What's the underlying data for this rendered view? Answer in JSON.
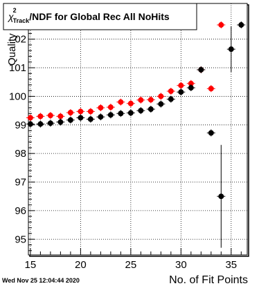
{
  "chart_data": {
    "type": "scatter",
    "title": "/NDF for Global Rec All NoHits",
    "title_symbol": "χ",
    "title_sup": "2",
    "title_sub": "Track",
    "xlabel": "No. of Fit Points",
    "ylabel": "Quality",
    "timestamp": "Wed Nov 25 12:04:44 2020",
    "xlim": [
      14.8,
      36.6
    ],
    "ylim": [
      94.45,
      103.25
    ],
    "x_ticks": [
      15,
      20,
      25,
      30,
      35
    ],
    "y_ticks": [
      95,
      96,
      97,
      98,
      99,
      100,
      101
    ],
    "y_tick_labels": [
      "95",
      "96",
      "97",
      "98",
      "99",
      "100",
      "101"
    ],
    "y_top_tick_value": 102,
    "y_top_tick_label": "02",
    "grid": true,
    "series": [
      {
        "color": "#ff0000",
        "points": [
          {
            "x": 15,
            "y": 99.25
          },
          {
            "x": 16,
            "y": 99.3
          },
          {
            "x": 17,
            "y": 99.33
          },
          {
            "x": 18,
            "y": 99.3
          },
          {
            "x": 19,
            "y": 99.43
          },
          {
            "x": 20,
            "y": 99.47
          },
          {
            "x": 21,
            "y": 99.47
          },
          {
            "x": 22,
            "y": 99.6
          },
          {
            "x": 23,
            "y": 99.62
          },
          {
            "x": 24,
            "y": 99.8
          },
          {
            "x": 25,
            "y": 99.75
          },
          {
            "x": 26,
            "y": 99.87
          },
          {
            "x": 27,
            "y": 99.88
          },
          {
            "x": 28,
            "y": 100.0
          },
          {
            "x": 29,
            "y": 100.18
          },
          {
            "x": 30,
            "y": 100.38
          },
          {
            "x": 31,
            "y": 100.45
          },
          {
            "x": 32,
            "y": 100.93
          },
          {
            "x": 33,
            "y": 100.27
          },
          {
            "x": 34,
            "y": 102.5
          }
        ]
      },
      {
        "color": "#000000",
        "points": [
          {
            "x": 15,
            "y": 99.03
          },
          {
            "x": 16,
            "y": 99.03
          },
          {
            "x": 17,
            "y": 99.06
          },
          {
            "x": 18,
            "y": 99.1
          },
          {
            "x": 19,
            "y": 99.17
          },
          {
            "x": 20,
            "y": 99.25
          },
          {
            "x": 21,
            "y": 99.2
          },
          {
            "x": 22,
            "y": 99.28
          },
          {
            "x": 23,
            "y": 99.35
          },
          {
            "x": 24,
            "y": 99.4
          },
          {
            "x": 25,
            "y": 99.42
          },
          {
            "x": 26,
            "y": 99.5
          },
          {
            "x": 27,
            "y": 99.55
          },
          {
            "x": 28,
            "y": 99.73
          },
          {
            "x": 29,
            "y": 99.9
          },
          {
            "x": 30,
            "y": 100.15
          },
          {
            "x": 31,
            "y": 100.3
          },
          {
            "x": 32,
            "y": 100.93
          },
          {
            "x": 33,
            "y": 98.72
          },
          {
            "x": 34,
            "y": 96.5,
            "err": 1.8
          },
          {
            "x": 35,
            "y": 101.65,
            "err": 0.8
          },
          {
            "x": 36,
            "y": 102.5
          }
        ]
      }
    ]
  }
}
